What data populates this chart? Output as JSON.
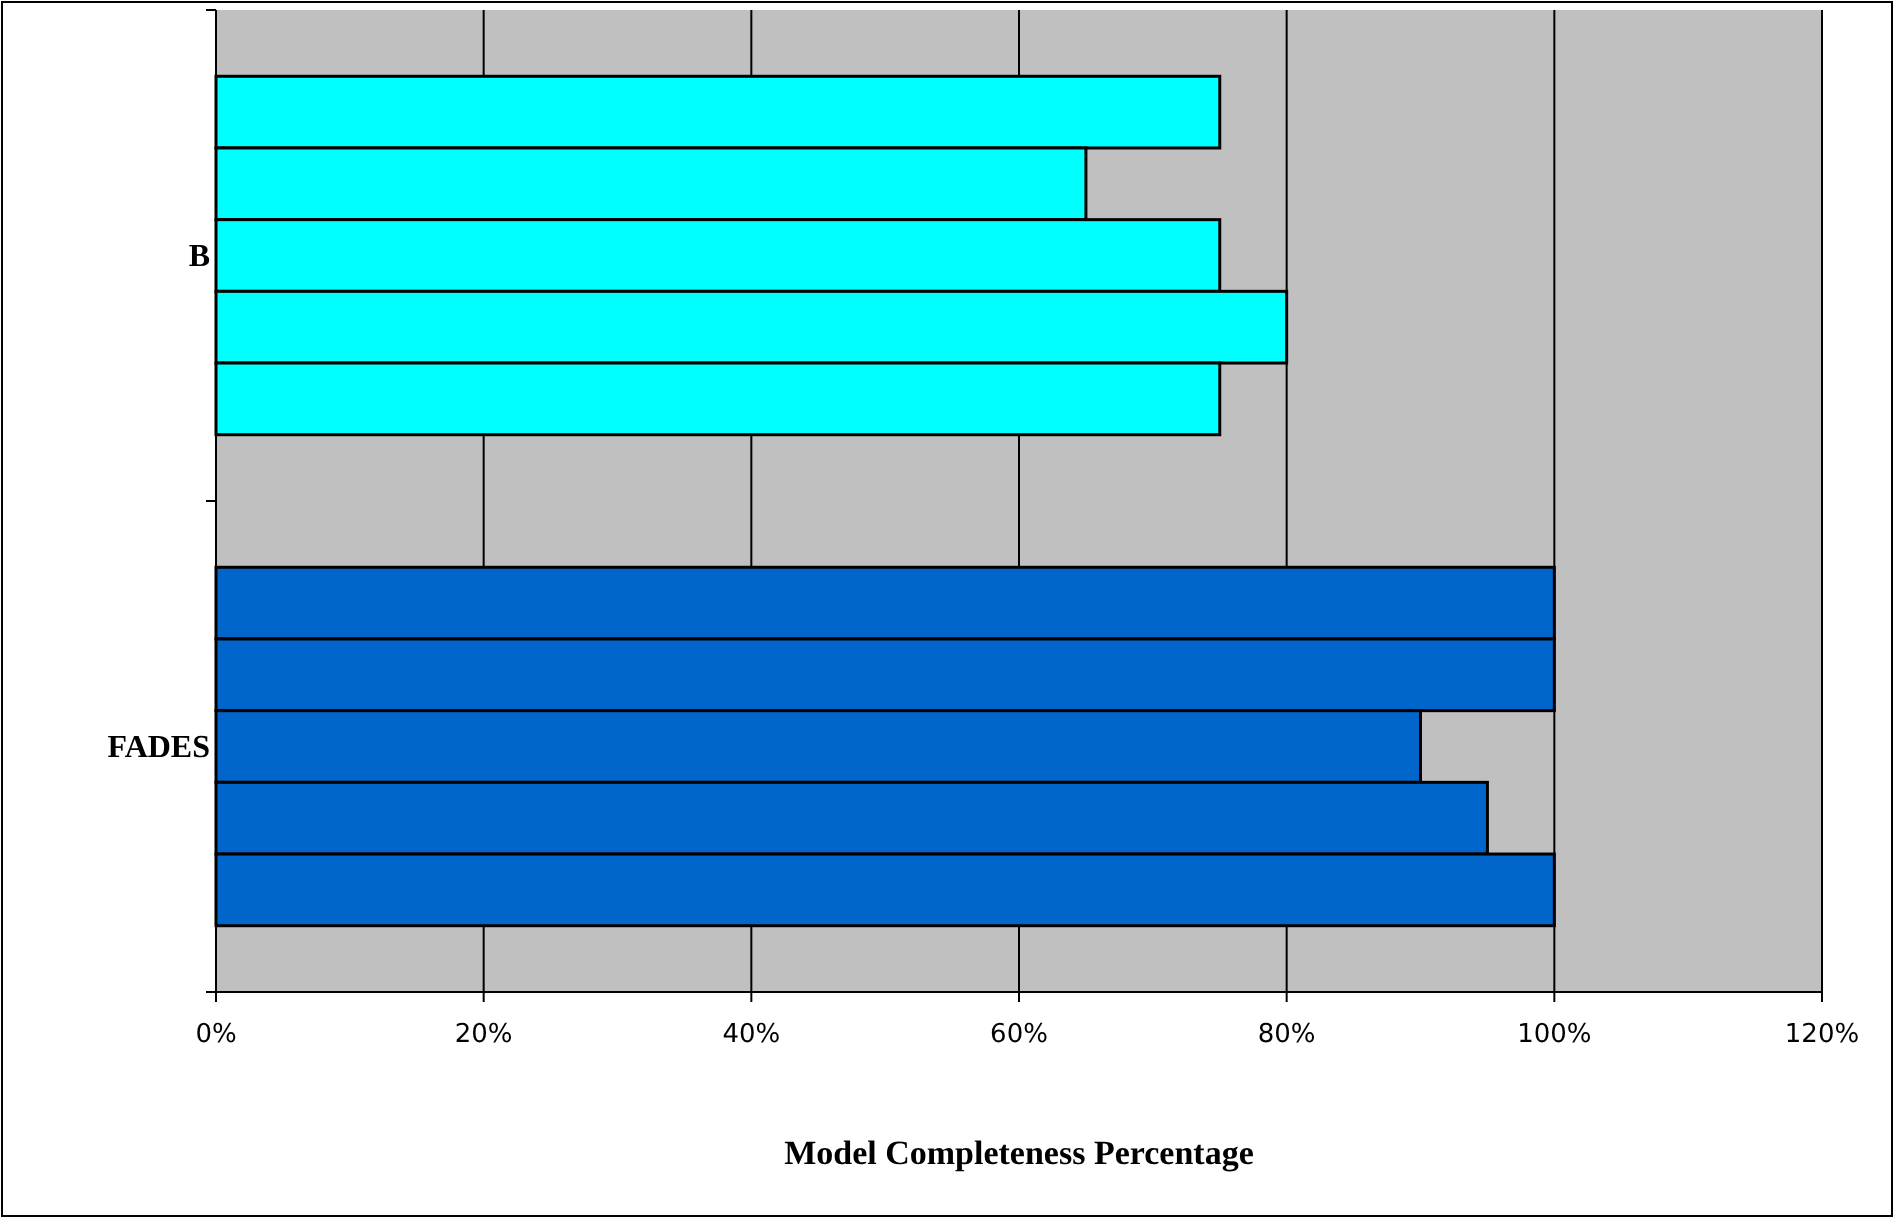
{
  "chart_data": {
    "type": "bar",
    "orientation": "horizontal",
    "xlabel": "Model Completeness Percentage",
    "categories": [
      "B",
      "FADES"
    ],
    "series": [
      {
        "colors": [
          "#00ffff",
          "#0066cc"
        ],
        "values": [
          75,
          100
        ]
      },
      {
        "colors": [
          "#00ffff",
          "#0066cc"
        ],
        "values": [
          65,
          100
        ]
      },
      {
        "colors": [
          "#00ffff",
          "#0066cc"
        ],
        "values": [
          75,
          90
        ]
      },
      {
        "colors": [
          "#00ffff",
          "#0066cc"
        ],
        "values": [
          80,
          95
        ]
      },
      {
        "colors": [
          "#00ffff",
          "#0066cc"
        ],
        "values": [
          75,
          100
        ]
      }
    ],
    "xlim": [
      0,
      120
    ],
    "xticks": [
      {
        "value": 0,
        "label": "0%"
      },
      {
        "value": 20,
        "label": "20%"
      },
      {
        "value": 40,
        "label": "40%"
      },
      {
        "value": 60,
        "label": "60%"
      },
      {
        "value": 80,
        "label": "80%"
      },
      {
        "value": 100,
        "label": "100%"
      },
      {
        "value": 120,
        "label": "120%"
      }
    ],
    "grid": "x"
  }
}
